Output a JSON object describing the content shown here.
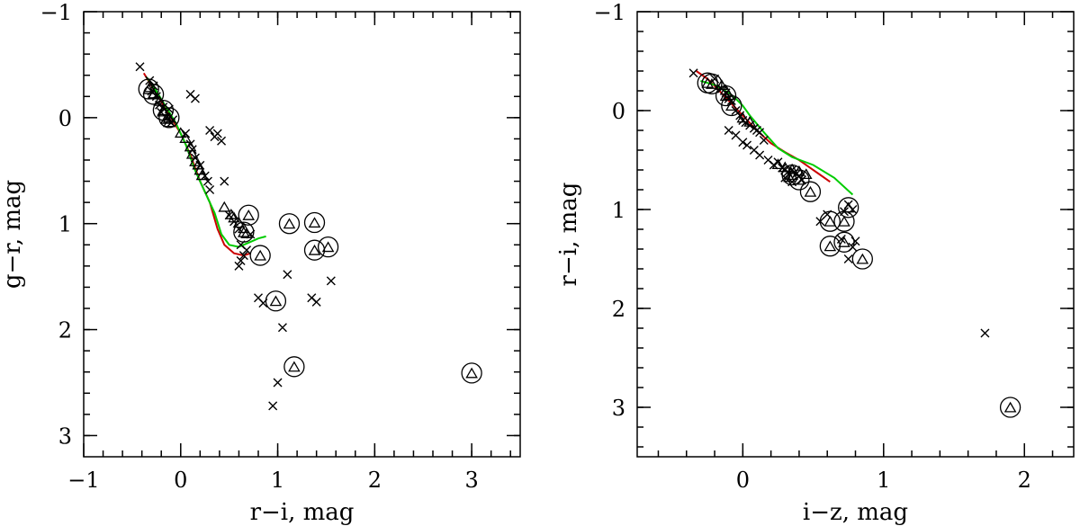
{
  "chart_data": [
    {
      "type": "scatter",
      "xlabel": "r−i, mag",
      "ylabel": "g−r, mag",
      "xlim": [
        -1,
        3.5
      ],
      "ylim": [
        3.2,
        -1.0
      ],
      "y_inverted": true,
      "xticks": [
        -1,
        0,
        1,
        2,
        3
      ],
      "yticks": [
        -1,
        0,
        1,
        2,
        3
      ],
      "xtick_labels": [
        "−1",
        "0",
        "1",
        "2",
        "3"
      ],
      "ytick_labels": [
        "−1",
        "0",
        "1",
        "2",
        "3"
      ],
      "crosses": [
        [
          -0.42,
          -0.48
        ],
        [
          -0.32,
          -0.35
        ],
        [
          -0.3,
          -0.25
        ],
        [
          -0.28,
          -0.3
        ],
        [
          -0.25,
          -0.2
        ],
        [
          -0.22,
          -0.12
        ],
        [
          -0.2,
          -0.05
        ],
        [
          -0.18,
          -0.1
        ],
        [
          -0.15,
          0.0
        ],
        [
          -0.12,
          -0.08
        ],
        [
          -0.1,
          0.05
        ],
        [
          -0.08,
          0.02
        ],
        [
          0.05,
          0.15
        ],
        [
          0.1,
          0.25
        ],
        [
          0.12,
          0.3
        ],
        [
          0.15,
          0.38
        ],
        [
          0.2,
          0.45
        ],
        [
          0.25,
          0.55
        ],
        [
          0.28,
          0.6
        ],
        [
          0.3,
          0.68
        ],
        [
          0.45,
          0.6
        ],
        [
          0.5,
          0.92
        ],
        [
          0.55,
          0.98
        ],
        [
          0.6,
          1.05
        ],
        [
          0.62,
          1.2
        ],
        [
          0.65,
          1.3
        ],
        [
          0.6,
          1.4
        ],
        [
          0.62,
          1.35
        ],
        [
          0.68,
          1.25
        ],
        [
          0.72,
          1.1
        ],
        [
          0.1,
          -0.22
        ],
        [
          0.15,
          -0.18
        ],
        [
          0.3,
          0.12
        ],
        [
          0.35,
          0.18
        ],
        [
          0.42,
          0.22
        ],
        [
          0.38,
          0.15
        ],
        [
          0.8,
          1.7
        ],
        [
          0.85,
          1.75
        ],
        [
          1.05,
          1.98
        ],
        [
          1.1,
          1.48
        ],
        [
          1.35,
          1.7
        ],
        [
          1.4,
          1.74
        ],
        [
          1.55,
          1.54
        ],
        [
          1.0,
          2.5
        ],
        [
          0.95,
          2.72
        ]
      ],
      "triangles": [
        [
          -0.32,
          -0.28
        ],
        [
          -0.28,
          -0.22
        ],
        [
          -0.22,
          -0.15
        ],
        [
          -0.18,
          -0.05
        ],
        [
          -0.15,
          0.02
        ],
        [
          -0.12,
          0.05
        ],
        [
          0.0,
          0.15
        ],
        [
          0.05,
          0.2
        ],
        [
          0.1,
          0.28
        ],
        [
          0.12,
          0.35
        ],
        [
          0.15,
          0.42
        ],
        [
          0.18,
          0.45
        ],
        [
          0.2,
          0.5
        ],
        [
          0.22,
          0.55
        ],
        [
          0.45,
          0.85
        ],
        [
          0.52,
          0.92
        ],
        [
          0.55,
          0.95
        ],
        [
          0.6,
          1.0
        ],
        [
          0.65,
          1.05
        ],
        [
          0.68,
          1.1
        ]
      ],
      "ringed_triangles": [
        [
          -0.33,
          -0.27
        ],
        [
          -0.28,
          -0.22
        ],
        [
          -0.18,
          -0.07
        ],
        [
          -0.12,
          0.0
        ],
        [
          0.7,
          0.92
        ],
        [
          0.65,
          1.08
        ],
        [
          0.82,
          1.3
        ],
        [
          0.98,
          1.73
        ],
        [
          1.12,
          1.0
        ],
        [
          1.38,
          0.99
        ],
        [
          1.38,
          1.25
        ],
        [
          1.52,
          1.22
        ],
        [
          1.17,
          2.35
        ],
        [
          3.0,
          2.41
        ]
      ],
      "series": [
        {
          "color": "#cc0000",
          "points": [
            [
              -0.38,
              -0.42
            ],
            [
              -0.3,
              -0.3
            ],
            [
              -0.2,
              -0.15
            ],
            [
              -0.1,
              0.0
            ],
            [
              0.0,
              0.15
            ],
            [
              0.1,
              0.35
            ],
            [
              0.2,
              0.6
            ],
            [
              0.3,
              0.8
            ],
            [
              0.38,
              1.05
            ],
            [
              0.45,
              1.2
            ],
            [
              0.55,
              1.28
            ],
            [
              0.65,
              1.3
            ],
            [
              0.72,
              1.28
            ]
          ]
        },
        {
          "color": "#00cc00",
          "points": [
            [
              -0.35,
              -0.38
            ],
            [
              -0.25,
              -0.25
            ],
            [
              -0.15,
              -0.1
            ],
            [
              -0.05,
              0.05
            ],
            [
              0.05,
              0.25
            ],
            [
              0.15,
              0.5
            ],
            [
              0.25,
              0.7
            ],
            [
              0.35,
              0.9
            ],
            [
              0.42,
              1.1
            ],
            [
              0.5,
              1.2
            ],
            [
              0.6,
              1.22
            ],
            [
              0.7,
              1.18
            ],
            [
              0.8,
              1.14
            ],
            [
              0.88,
              1.12
            ]
          ]
        }
      ]
    },
    {
      "type": "scatter",
      "xlabel": "i−z, mag",
      "ylabel": "r−i, mag",
      "xlim": [
        -0.75,
        2.35
      ],
      "ylim": [
        3.5,
        -1.0
      ],
      "y_inverted": true,
      "xticks": [
        0,
        1,
        2
      ],
      "yticks": [
        -1,
        0,
        1,
        2,
        3
      ],
      "xtick_labels": [
        "0",
        "1",
        "2"
      ],
      "ytick_labels": [
        "−1",
        "0",
        "1",
        "2",
        "3"
      ],
      "crosses": [
        [
          -0.35,
          -0.38
        ],
        [
          -0.2,
          -0.32
        ],
        [
          -0.15,
          -0.22
        ],
        [
          -0.12,
          -0.18
        ],
        [
          -0.1,
          -0.12
        ],
        [
          -0.08,
          -0.1
        ],
        [
          -0.05,
          0.0
        ],
        [
          -0.02,
          0.05
        ],
        [
          0.0,
          0.1
        ],
        [
          0.02,
          0.12
        ],
        [
          0.05,
          0.15
        ],
        [
          0.08,
          0.18
        ],
        [
          0.1,
          0.2
        ],
        [
          0.12,
          0.22
        ],
        [
          0.15,
          0.3
        ],
        [
          -0.1,
          0.2
        ],
        [
          -0.05,
          0.25
        ],
        [
          0.0,
          0.32
        ],
        [
          0.03,
          0.35
        ],
        [
          0.08,
          0.4
        ],
        [
          0.12,
          0.45
        ],
        [
          0.18,
          0.5
        ],
        [
          0.22,
          0.55
        ],
        [
          0.25,
          0.52
        ],
        [
          0.28,
          0.58
        ],
        [
          0.3,
          0.6
        ],
        [
          0.32,
          0.62
        ],
        [
          0.35,
          0.6
        ],
        [
          0.38,
          0.64
        ],
        [
          0.4,
          0.66
        ],
        [
          0.42,
          0.7
        ],
        [
          0.3,
          0.68
        ],
        [
          0.35,
          0.72
        ],
        [
          0.55,
          1.12
        ],
        [
          0.6,
          1.05
        ],
        [
          0.7,
          1.3
        ],
        [
          0.75,
          1.5
        ],
        [
          0.78,
          1.38
        ],
        [
          0.8,
          1.32
        ],
        [
          0.72,
          1.02
        ],
        [
          0.75,
          0.95
        ],
        [
          0.78,
          1.0
        ],
        [
          1.72,
          2.25
        ]
      ],
      "triangles": [
        [
          -0.15,
          -0.25
        ],
        [
          -0.12,
          -0.2
        ],
        [
          -0.1,
          -0.15
        ],
        [
          0.0,
          0.08
        ],
        [
          0.05,
          0.12
        ],
        [
          0.25,
          0.55
        ],
        [
          0.3,
          0.58
        ],
        [
          0.35,
          0.6
        ],
        [
          0.4,
          0.62
        ],
        [
          0.45,
          0.65
        ],
        [
          0.33,
          0.68
        ]
      ],
      "ringed_triangles": [
        [
          -0.25,
          -0.28
        ],
        [
          -0.22,
          -0.27
        ],
        [
          -0.12,
          -0.15
        ],
        [
          -0.08,
          -0.05
        ],
        [
          0.35,
          0.65
        ],
        [
          0.4,
          0.7
        ],
        [
          0.48,
          0.82
        ],
        [
          0.75,
          0.98
        ],
        [
          0.62,
          1.12
        ],
        [
          0.72,
          1.12
        ],
        [
          0.62,
          1.37
        ],
        [
          0.72,
          1.33
        ],
        [
          0.85,
          1.5
        ],
        [
          1.9,
          3.0
        ]
      ],
      "series": [
        {
          "color": "#cc0000",
          "points": [
            [
              -0.33,
              -0.4
            ],
            [
              -0.25,
              -0.32
            ],
            [
              -0.18,
              -0.22
            ],
            [
              -0.1,
              -0.1
            ],
            [
              0.0,
              0.05
            ],
            [
              0.1,
              0.2
            ],
            [
              0.2,
              0.33
            ],
            [
              0.3,
              0.42
            ],
            [
              0.4,
              0.5
            ],
            [
              0.48,
              0.58
            ],
            [
              0.55,
              0.65
            ],
            [
              0.62,
              0.72
            ]
          ]
        },
        {
          "color": "#00cc00",
          "points": [
            [
              -0.3,
              -0.3
            ],
            [
              -0.2,
              -0.26
            ],
            [
              -0.1,
              -0.18
            ],
            [
              -0.05,
              -0.12
            ],
            [
              0.0,
              -0.05
            ],
            [
              0.05,
              0.05
            ],
            [
              0.15,
              0.22
            ],
            [
              0.25,
              0.38
            ],
            [
              0.35,
              0.47
            ],
            [
              0.5,
              0.55
            ],
            [
              0.65,
              0.68
            ],
            [
              0.78,
              0.85
            ]
          ]
        }
      ]
    }
  ]
}
